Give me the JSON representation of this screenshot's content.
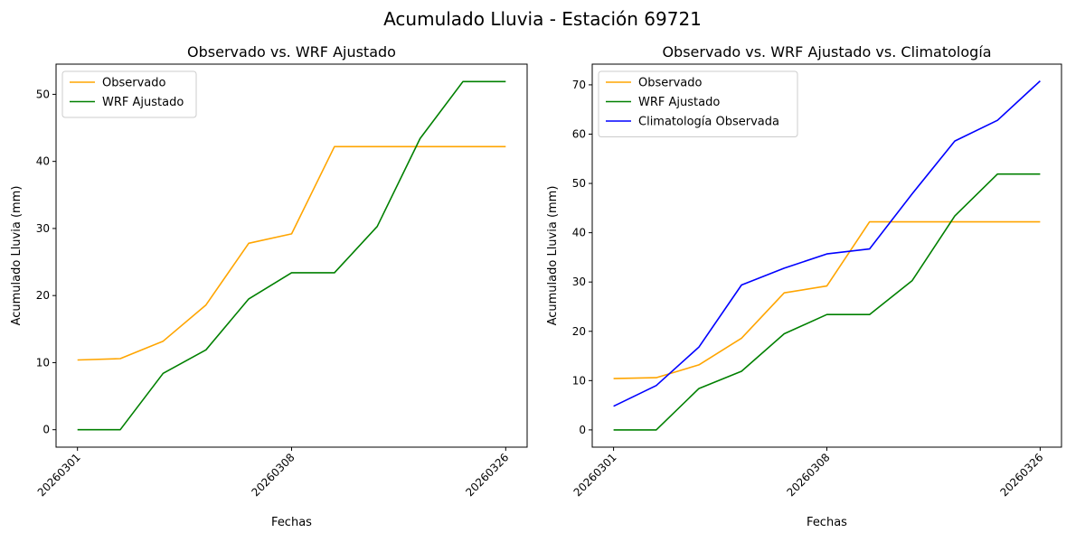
{
  "suptitle": "Acumulado Lluvia - Estación 69721",
  "chart_data": [
    {
      "type": "line",
      "title": "Observado vs. WRF Ajustado",
      "xlabel": "Fechas",
      "ylabel": "Acumulado Lluvia (mm)",
      "x_tick_labels": [
        "20260301",
        "20260308",
        "20260326"
      ],
      "x_tick_positions": [
        0,
        5,
        10
      ],
      "xlim": [
        -0.5,
        10.5
      ],
      "ylim": [
        -2.6,
        54.5
      ],
      "y_ticks": [
        0,
        10,
        20,
        30,
        40,
        50
      ],
      "legend_position": "top-left",
      "series": [
        {
          "name": "Observado",
          "color": "#ffa500",
          "values": [
            10.4,
            10.6,
            13.2,
            18.6,
            27.8,
            29.2,
            42.2,
            42.2,
            42.2,
            42.2,
            42.2
          ]
        },
        {
          "name": "WRF Ajustado",
          "color": "#008000",
          "values": [
            0,
            0,
            8.4,
            11.9,
            19.5,
            23.4,
            23.4,
            30.3,
            43.4,
            51.9,
            51.9
          ]
        }
      ]
    },
    {
      "type": "line",
      "title": "Observado vs. WRF Ajustado vs. Climatología",
      "xlabel": "Fechas",
      "ylabel": "Acumulado Lluvia (mm)",
      "x_tick_labels": [
        "20260301",
        "20260308",
        "20260326"
      ],
      "x_tick_positions": [
        0,
        5,
        10
      ],
      "xlim": [
        -0.5,
        10.5
      ],
      "ylim": [
        -3.5,
        74.2
      ],
      "y_ticks": [
        0,
        10,
        20,
        30,
        40,
        50,
        60,
        70
      ],
      "legend_position": "top-left",
      "series": [
        {
          "name": "Observado",
          "color": "#ffa500",
          "values": [
            10.4,
            10.6,
            13.2,
            18.6,
            27.8,
            29.2,
            42.2,
            42.2,
            42.2,
            42.2,
            42.2
          ]
        },
        {
          "name": "WRF Ajustado",
          "color": "#008000",
          "values": [
            0,
            0,
            8.4,
            11.9,
            19.5,
            23.4,
            23.4,
            30.3,
            43.4,
            51.9,
            51.9
          ]
        },
        {
          "name": "Climatología Observada",
          "color": "#0000ff",
          "values": [
            4.8,
            9.0,
            16.8,
            29.4,
            32.8,
            35.7,
            36.7,
            47.9,
            58.6,
            62.8,
            70.8
          ]
        }
      ]
    }
  ]
}
